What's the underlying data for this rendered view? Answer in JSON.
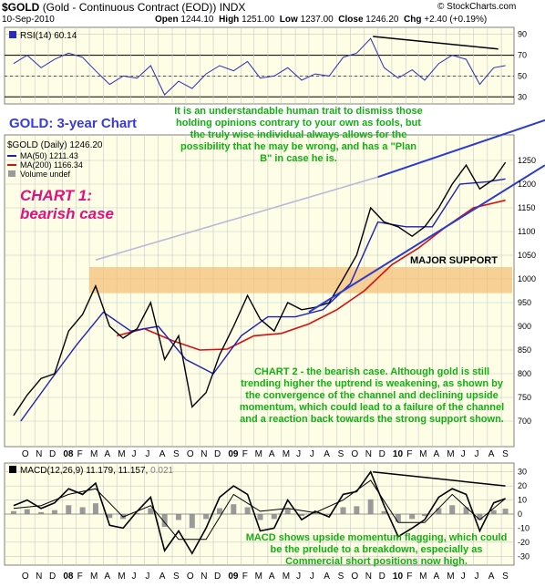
{
  "header": {
    "symbol": "$GOLD",
    "name": "(Gold - Continuous Contract (EOD))",
    "exchange": "INDX",
    "copyright": "© StockCharts.com",
    "date": "10-Sep-2010",
    "open_label": "Open",
    "open_value": "1244.10",
    "high_label": "High",
    "high_value": "1251.00",
    "low_label": "Low",
    "low_value": "1237.00",
    "close_label": "Close",
    "close_value": "1246.20",
    "chg_label": "Chg",
    "chg_value": "+2.40 (+0.19%)"
  },
  "colors": {
    "panel_bg": "#fefee6",
    "grid": "#c8c8c8",
    "candle_up": "#000000",
    "candle_down": "#c00000",
    "ma50": "#1f1fb4",
    "ma200": "#d81010",
    "rsi": "#2d2db4",
    "channel": "#2b3bcf",
    "support_band": "#f4c07a",
    "divergence": "#000000",
    "macd_hist": "#9a9a9a",
    "annotation_green": "#12b012",
    "title_blue": "#3b3bd6",
    "chart1_magenta": "#e0117f"
  },
  "annotations": {
    "rsi_legend": "RSI(14) 60.14",
    "chart_title": "GOLD: 3-year Chart",
    "quote_text": "It is an understandable human trait to dismiss those holding opinions contrary to your own as fools, but the truly wise individual always allows for the possibility that he may be wrong, and has a \"Plan B\" in case he is.",
    "chart1_line1": "CHART 1:",
    "chart1_line2": "bearish case",
    "major_support": "MAJOR SUPPORT",
    "chart2_text": "CHART 2 - the bearish case. Although gold is still trending higher the uptrend is weakening, as shown by the convergence of the channel and declining upside momentum, which could lead to a failure of the channel and a reaction back towards the strong support shown.",
    "macd_legend_label": "MACD(12,26,9)",
    "macd_legend_v1": "11.179",
    "macd_legend_v2": "11.157",
    "macd_legend_v3": "0.021",
    "macd_text": "MACD shows upside momentum flagging, which could be the prelude to a breakdown, especially as Commercial short positions now high.",
    "price_legend_title": "$GOLD (Daily) 1246.20",
    "price_legend_ma50": "MA(50) 1211.43",
    "price_legend_ma200": "MA(200) 1166.34",
    "price_legend_volume": "Volume undef"
  },
  "chart_data": [
    {
      "type": "line",
      "title": "RSI(14) 60.14",
      "ylim": [
        25,
        95
      ],
      "y_ticks": [
        30,
        50,
        70,
        90
      ],
      "series": [
        {
          "name": "RSI(14)",
          "x": [
            "2007-09-15",
            "2007-10-15",
            "2007-11-15",
            "2007-12-15",
            "2008-01-15",
            "2008-02-15",
            "2008-03-15",
            "2008-04-15",
            "2008-05-15",
            "2008-06-15",
            "2008-07-15",
            "2008-08-15",
            "2008-09-15",
            "2008-10-15",
            "2008-11-15",
            "2008-12-15",
            "2009-01-15",
            "2009-02-15",
            "2009-03-15",
            "2009-04-15",
            "2009-05-15",
            "2009-06-15",
            "2009-07-15",
            "2009-08-15",
            "2009-09-15",
            "2009-10-15",
            "2009-11-15",
            "2009-12-15",
            "2010-01-15",
            "2010-02-15",
            "2010-03-15",
            "2010-04-15",
            "2010-05-15",
            "2010-06-15",
            "2010-07-15",
            "2010-08-15",
            "2010-09-10"
          ],
          "values": [
            62,
            70,
            58,
            66,
            72,
            68,
            55,
            42,
            50,
            48,
            60,
            32,
            45,
            38,
            52,
            60,
            55,
            64,
            48,
            50,
            58,
            46,
            52,
            50,
            68,
            72,
            86,
            58,
            48,
            56,
            46,
            62,
            70,
            66,
            42,
            58,
            60
          ]
        }
      ],
      "reference_lines": [
        30,
        50,
        70
      ]
    },
    {
      "type": "line",
      "title": "$GOLD (Daily) 1246.20",
      "ylim": [
        650,
        1300
      ],
      "y_ticks": [
        700,
        750,
        800,
        850,
        900,
        950,
        1000,
        1050,
        1100,
        1150,
        1200,
        1250
      ],
      "x_ticks": [
        "O",
        "N",
        "D",
        "08",
        "F",
        "M",
        "A",
        "M",
        "J",
        "J",
        "A",
        "S",
        "O",
        "N",
        "D",
        "09",
        "F",
        "M",
        "A",
        "M",
        "J",
        "J",
        "A",
        "S",
        "O",
        "N",
        "D",
        "10",
        "F",
        "M",
        "A",
        "M",
        "J",
        "J",
        "A",
        "S"
      ],
      "series": [
        {
          "name": "$GOLD (Daily)",
          "x": [
            "2007-09-15",
            "2007-10-15",
            "2007-11-15",
            "2007-12-15",
            "2008-01-15",
            "2008-02-15",
            "2008-03-15",
            "2008-04-15",
            "2008-05-15",
            "2008-06-15",
            "2008-07-15",
            "2008-08-15",
            "2008-09-15",
            "2008-10-15",
            "2008-11-15",
            "2008-12-15",
            "2009-01-15",
            "2009-02-15",
            "2009-03-15",
            "2009-04-15",
            "2009-05-15",
            "2009-06-15",
            "2009-07-15",
            "2009-08-15",
            "2009-09-15",
            "2009-10-15",
            "2009-11-15",
            "2009-12-15",
            "2010-01-15",
            "2010-02-15",
            "2010-03-15",
            "2010-04-15",
            "2010-05-15",
            "2010-06-15",
            "2010-07-15",
            "2010-08-15",
            "2010-09-10"
          ],
          "values": [
            712,
            755,
            790,
            800,
            890,
            925,
            985,
            900,
            875,
            895,
            950,
            830,
            880,
            730,
            760,
            840,
            900,
            965,
            915,
            890,
            950,
            935,
            940,
            950,
            1000,
            1050,
            1150,
            1120,
            1110,
            1090,
            1110,
            1150,
            1200,
            1240,
            1190,
            1210,
            1246
          ]
        },
        {
          "name": "MA(50)",
          "x": [
            "2007-10-01",
            "2007-12-01",
            "2008-02-01",
            "2008-04-01",
            "2008-06-01",
            "2008-08-01",
            "2008-10-01",
            "2008-12-01",
            "2009-02-01",
            "2009-04-01",
            "2009-06-01",
            "2009-08-01",
            "2009-10-01",
            "2009-12-01",
            "2010-02-01",
            "2010-04-01",
            "2010-06-01",
            "2010-08-01",
            "2010-09-10"
          ],
          "values": [
            700,
            780,
            860,
            930,
            890,
            900,
            830,
            800,
            880,
            920,
            920,
            935,
            990,
            1120,
            1110,
            1110,
            1200,
            1205,
            1211
          ]
        },
        {
          "name": "MA(200)",
          "x": [
            "2008-05-01",
            "2008-07-01",
            "2008-09-01",
            "2008-11-01",
            "2009-01-01",
            "2009-03-01",
            "2009-05-01",
            "2009-07-01",
            "2009-09-01",
            "2009-11-01",
            "2010-01-01",
            "2010-03-01",
            "2010-05-01",
            "2010-07-01",
            "2010-09-10"
          ],
          "values": [
            880,
            895,
            870,
            850,
            852,
            880,
            885,
            905,
            935,
            975,
            1030,
            1065,
            1110,
            1150,
            1166
          ]
        }
      ],
      "support_band": [
        970,
        1025
      ]
    },
    {
      "type": "line",
      "title": "MACD(12,26,9) 11.179, 11.157, 0.021",
      "ylim": [
        -35,
        35
      ],
      "y_ticks": [
        -30,
        -20,
        -10,
        0,
        10,
        20,
        30
      ],
      "x_ticks": [
        "O",
        "N",
        "D",
        "08",
        "F",
        "M",
        "A",
        "M",
        "J",
        "J",
        "A",
        "S",
        "O",
        "N",
        "D",
        "09",
        "F",
        "M",
        "A",
        "M",
        "J",
        "J",
        "A",
        "S",
        "O",
        "N",
        "D",
        "10",
        "F",
        "M",
        "A",
        "M",
        "J",
        "J",
        "A",
        "S"
      ],
      "series": [
        {
          "name": "MACD",
          "x": [
            "2007-09-15",
            "2007-10-15",
            "2007-11-15",
            "2007-12-15",
            "2008-01-15",
            "2008-02-15",
            "2008-03-15",
            "2008-04-15",
            "2008-05-15",
            "2008-06-15",
            "2008-07-15",
            "2008-08-15",
            "2008-09-15",
            "2008-10-15",
            "2008-11-15",
            "2008-12-15",
            "2009-01-15",
            "2009-02-15",
            "2009-03-15",
            "2009-04-15",
            "2009-05-15",
            "2009-06-15",
            "2009-07-15",
            "2009-08-15",
            "2009-09-15",
            "2009-10-15",
            "2009-11-15",
            "2009-12-15",
            "2010-01-15",
            "2010-02-15",
            "2010-03-15",
            "2010-04-15",
            "2010-05-15",
            "2010-06-15",
            "2010-07-15",
            "2010-08-15",
            "2010-09-10"
          ],
          "values": [
            6,
            10,
            4,
            8,
            18,
            14,
            22,
            -8,
            -10,
            2,
            12,
            -26,
            -12,
            -28,
            -10,
            12,
            20,
            14,
            -12,
            -10,
            10,
            -4,
            2,
            -2,
            14,
            16,
            30,
            6,
            -16,
            -10,
            -4,
            12,
            18,
            14,
            -12,
            8,
            11
          ]
        },
        {
          "name": "Signal",
          "x": [
            "2007-09-15",
            "2007-11-15",
            "2008-01-15",
            "2008-03-15",
            "2008-05-15",
            "2008-07-15",
            "2008-09-15",
            "2008-11-15",
            "2009-01-15",
            "2009-03-15",
            "2009-05-15",
            "2009-07-15",
            "2009-09-15",
            "2009-11-15",
            "2010-01-15",
            "2010-03-15",
            "2010-05-15",
            "2010-07-15",
            "2010-09-10"
          ],
          "values": [
            4,
            6,
            14,
            18,
            -2,
            6,
            -18,
            -18,
            14,
            2,
            4,
            1,
            10,
            24,
            -6,
            -6,
            14,
            -4,
            11
          ]
        }
      ]
    }
  ]
}
